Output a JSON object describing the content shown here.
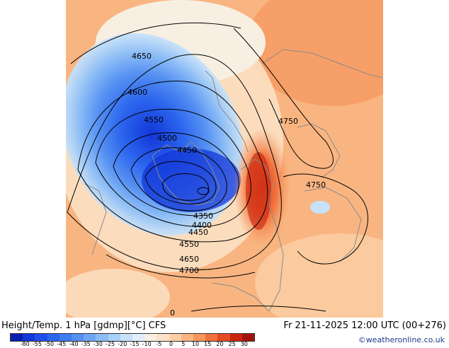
{
  "map": {
    "contour_labels": [
      {
        "id": "c4650a",
        "text": "4650"
      },
      {
        "id": "c4600",
        "text": "4600"
      },
      {
        "id": "c4550a",
        "text": "4550"
      },
      {
        "id": "c4500",
        "text": "4500"
      },
      {
        "id": "c4450a",
        "text": "4450"
      },
      {
        "id": "c4750a",
        "text": "4750"
      },
      {
        "id": "c4750b",
        "text": "4750"
      },
      {
        "id": "c4350",
        "text": "4350"
      },
      {
        "id": "c4400",
        "text": "4400"
      },
      {
        "id": "c4450b",
        "text": "4450"
      },
      {
        "id": "c4550b",
        "text": "4550"
      },
      {
        "id": "c4650b",
        "text": "4650"
      },
      {
        "id": "c4700",
        "text": "4700"
      }
    ],
    "corner_label": "0"
  },
  "footer": {
    "title": "Height/Temp. 1 hPa [gdmp][°C] CFS",
    "datetime": "Fr 21-11-2025 12:00 UTC (00+276)",
    "credit": "©weatheronline.co.uk"
  },
  "colorbar": {
    "ticks": [
      "-80",
      "-55",
      "-50",
      "-45",
      "-40",
      "-35",
      "-30",
      "-25",
      "-20",
      "-15",
      "-10",
      "-5",
      "0",
      "5",
      "10",
      "15",
      "20",
      "25",
      "30"
    ],
    "colors": [
      "#0a1fb0",
      "#1236d8",
      "#1f4fe8",
      "#2c66ee",
      "#3d7bf0",
      "#5590f2",
      "#6ea6f4",
      "#8bbcf6",
      "#a8d0f8",
      "#c6e2fa",
      "#e2effb",
      "#f7efe2",
      "#fbe3c8",
      "#fbcfa5",
      "#f9b581",
      "#f6965e",
      "#f1703c",
      "#e24a22",
      "#c9260f",
      "#a4110a"
    ],
    "accent_cold": "#2c5fe0",
    "accent_warm": "#e8641f"
  }
}
